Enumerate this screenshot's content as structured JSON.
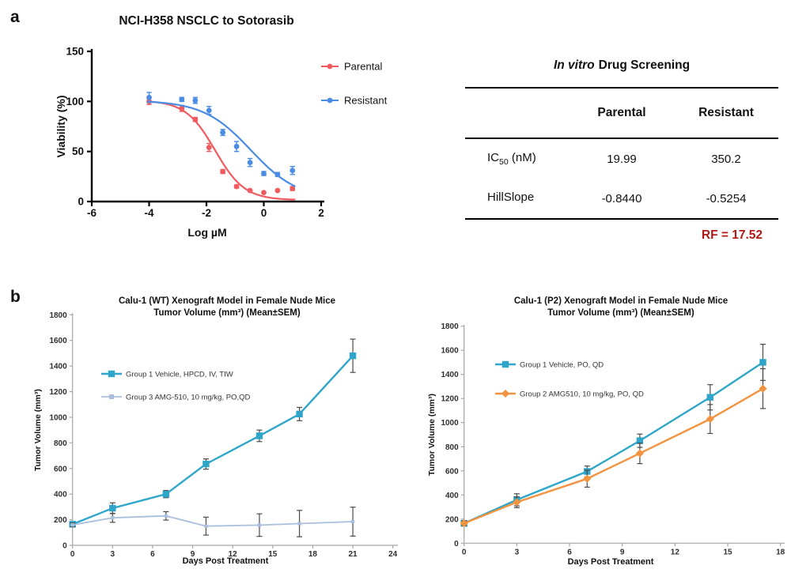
{
  "panel_a_label": "a",
  "panel_b_label": "b",
  "invitro": {
    "title_italic": "In vitro",
    "title_rest": "Drug Screening",
    "columns": [
      "Parental",
      "Resistant"
    ],
    "rows": [
      {
        "label_prefix": "IC",
        "label_sub": "50",
        "label_suffix": " (nM)",
        "parental": "19.99",
        "resistant": "350.2"
      },
      {
        "label_prefix": "HillSlope",
        "label_sub": "",
        "label_suffix": "",
        "parental": "-0.8440",
        "resistant": "-0.5254"
      }
    ],
    "rf_label": "RF = 17.52",
    "rf_color": "#b11917"
  },
  "chart_data": [
    {
      "id": "dose_response",
      "type": "scatter",
      "title": "NCI-H358 NSCLC to Sotorasib",
      "xlabel": "Log µM",
      "ylabel": "Viability (%)",
      "xlim": [
        -6,
        2
      ],
      "ylim": [
        0,
        150
      ],
      "xticks": [
        -6,
        -4,
        -2,
        0,
        2
      ],
      "yticks": [
        0,
        50,
        100,
        150
      ],
      "grid": false,
      "legend_position": "right-of-plot",
      "series": [
        {
          "name": "Parental",
          "color": "#f15a5f",
          "marker": "circle",
          "x": [
            -4,
            -2.86,
            -2.39,
            -1.91,
            -1.43,
            -0.95,
            -0.48,
            0,
            0.48,
            1
          ],
          "y": [
            100,
            93,
            82,
            54,
            30,
            15,
            11,
            9,
            11,
            13
          ],
          "err": [
            3,
            3,
            2,
            4,
            2,
            1.5,
            1,
            1,
            1,
            2
          ],
          "fit": {
            "top": 101,
            "bottom": 1.5,
            "logIC50": -1.699,
            "hill": -0.844,
            "range": [
              -4.05,
              1.1
            ]
          }
        },
        {
          "name": "Resistant",
          "color": "#4b8de4",
          "marker": "circle",
          "x": [
            -4,
            -2.86,
            -2.39,
            -1.91,
            -1.43,
            -0.95,
            -0.48,
            0,
            0.48,
            1
          ],
          "y": [
            104,
            102,
            101,
            91,
            69,
            55,
            39,
            28,
            27,
            31
          ],
          "err": [
            5,
            2,
            3,
            4,
            3,
            5,
            4,
            2,
            2,
            4
          ],
          "fit": {
            "top": 101,
            "bottom": 2,
            "logIC50": -0.456,
            "hill": -0.5254,
            "range": [
              -4.05,
              1.1
            ]
          }
        }
      ]
    },
    {
      "id": "xeno_wt",
      "type": "line",
      "title_line1": "Calu-1 (WT) Xenograft Model in Female Nude Mice",
      "title_line2": "Tumor Volume (mm³) (Mean±SEM)",
      "xlabel": "Days Post Treatment",
      "ylabel": "Tumor Volume (mm³)",
      "xlim": [
        0,
        24
      ],
      "ylim": [
        0,
        1800
      ],
      "xticks": [
        0,
        3,
        6,
        9,
        12,
        15,
        18,
        21,
        24
      ],
      "yticks": [
        0,
        200,
        400,
        600,
        800,
        1000,
        1200,
        1400,
        1600,
        1800
      ],
      "grid": false,
      "legend_position": "inside-upper-left",
      "series": [
        {
          "name": "Group 1 Vehicle, HPCD, IV, TIW",
          "color": "#2fa6c9",
          "err_color": "#4a4a4a",
          "marker": "square",
          "marker_size": 4.2,
          "line_width": 2.4,
          "x": [
            0,
            3,
            7,
            10,
            14,
            17,
            21
          ],
          "y": [
            165,
            290,
            400,
            635,
            855,
            1025,
            1480
          ],
          "err": [
            20,
            42,
            28,
            40,
            45,
            52,
            130
          ]
        },
        {
          "name": "Group 3 AMG-510, 10 mg/kg, PO,QD",
          "color": "#aabfdd",
          "err_color": "#4a4a4a",
          "marker": "square",
          "marker_size": 2.2,
          "line_width": 1.8,
          "x": [
            0,
            3,
            7,
            10,
            14,
            17,
            21
          ],
          "y": [
            160,
            215,
            230,
            150,
            158,
            170,
            185
          ],
          "err": [
            15,
            35,
            33,
            70,
            88,
            103,
            113
          ]
        }
      ]
    },
    {
      "id": "xeno_p2",
      "type": "line",
      "title_line1": "Calu-1 (P2) Xenograft Model in Female Nude Mice",
      "title_line2": "Tumor Volume (mm³) (Mean±SEM)",
      "xlabel": "Days Post Treatment",
      "ylabel": "Tumor Volume (mm³)",
      "xlim": [
        0,
        18
      ],
      "ylim": [
        0,
        1800
      ],
      "xticks": [
        0,
        3,
        6,
        9,
        12,
        15,
        18
      ],
      "yticks": [
        0,
        200,
        400,
        600,
        800,
        1000,
        1200,
        1400,
        1600,
        1800
      ],
      "grid": false,
      "legend_position": "inside-upper-left",
      "series": [
        {
          "name": "Group 1 Vehicle, PO, QD",
          "color": "#2fa6c9",
          "err_color": "#4a4a4a",
          "marker": "square",
          "marker_size": 4.2,
          "line_width": 2.4,
          "x": [
            0,
            3,
            7,
            10,
            14,
            17
          ],
          "y": [
            165,
            360,
            595,
            850,
            1210,
            1500
          ],
          "err": [
            20,
            50,
            45,
            55,
            105,
            150
          ]
        },
        {
          "name": "Group 2 AMG510, 10 mg/kg, PO, QD",
          "color": "#f2943f",
          "err_color": "#4a4a4a",
          "marker": "diamond",
          "marker_size": 3.6,
          "line_width": 2.4,
          "x": [
            0,
            3,
            7,
            10,
            14,
            17
          ],
          "y": [
            165,
            340,
            535,
            745,
            1030,
            1282
          ],
          "err": [
            20,
            45,
            70,
            85,
            120,
            165
          ]
        }
      ]
    }
  ]
}
